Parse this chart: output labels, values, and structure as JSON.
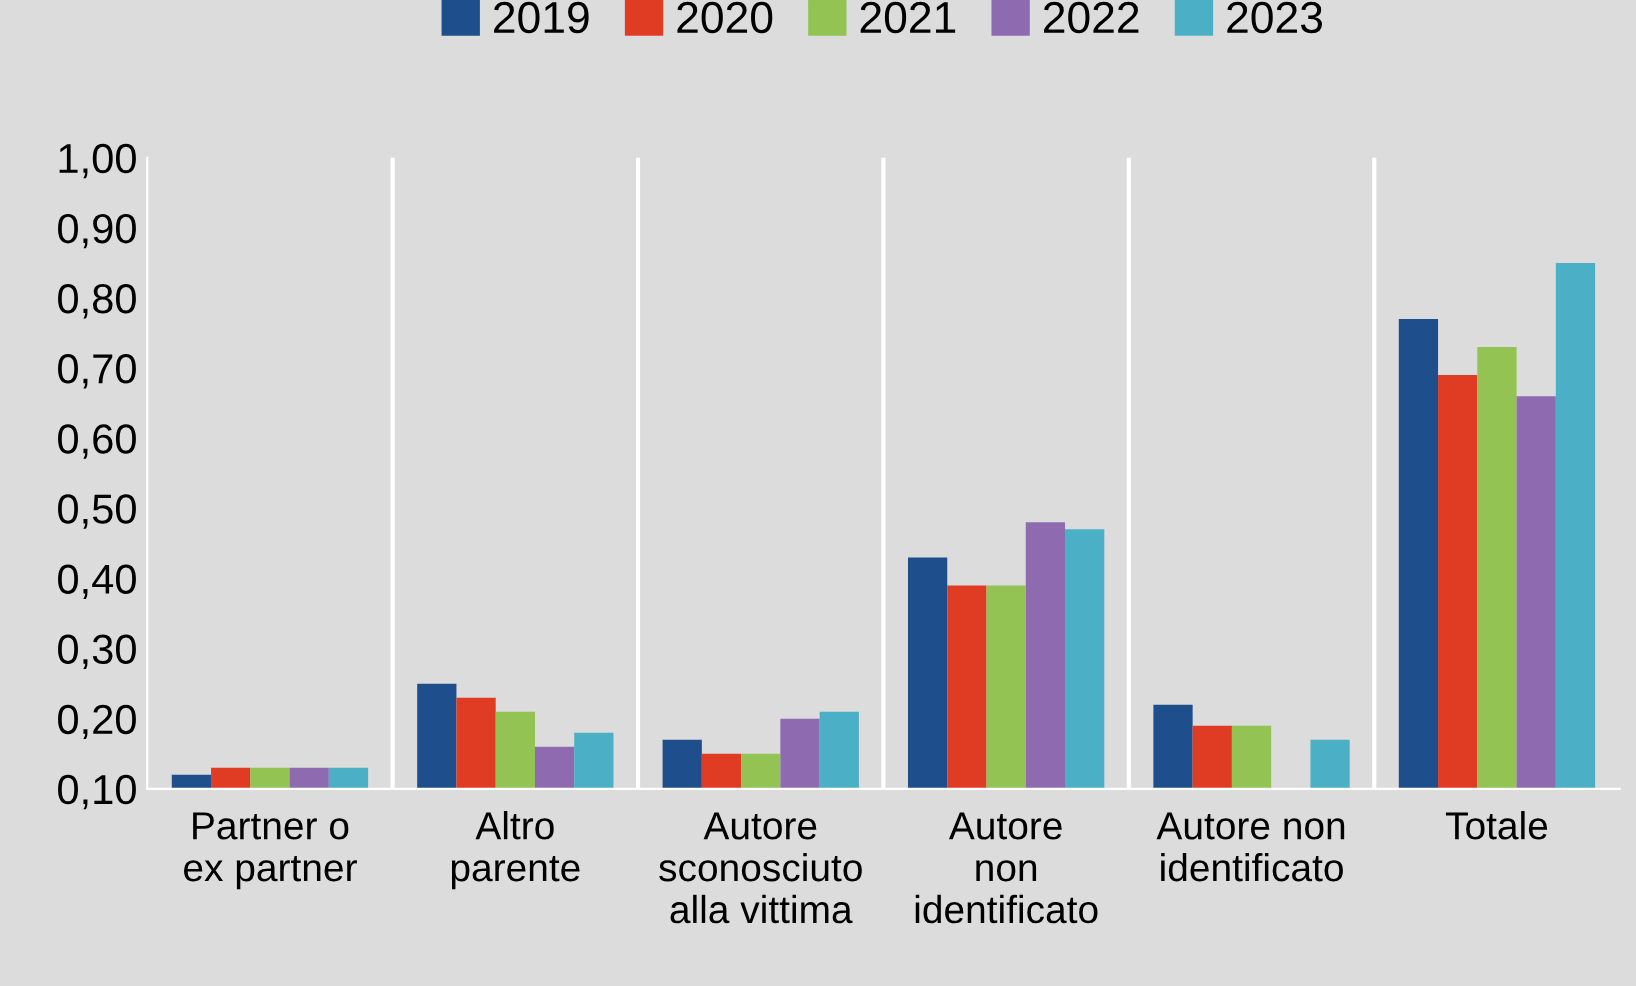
{
  "chart_data": {
    "type": "bar",
    "categories": [
      "Partner o\nex partner",
      "Altro\nparente",
      "Autore\nsconosciuto\nalla vittima",
      "Autore\nnon\nidentificato",
      "Autore non\nidentificato",
      "Totale"
    ],
    "series": [
      {
        "name": "2019",
        "color": "#1f4e8c",
        "values": [
          0.12,
          0.25,
          0.17,
          0.43,
          0.22,
          0.77
        ]
      },
      {
        "name": "2020",
        "color": "#e03c24",
        "values": [
          0.13,
          0.23,
          0.15,
          0.39,
          0.19,
          0.69
        ]
      },
      {
        "name": "2021",
        "color": "#92c353",
        "values": [
          0.13,
          0.21,
          0.15,
          0.39,
          0.19,
          0.73
        ]
      },
      {
        "name": "2022",
        "color": "#8e6bb0",
        "values": [
          0.13,
          0.16,
          0.2,
          0.48,
          null,
          0.66
        ]
      },
      {
        "name": "2023",
        "color": "#4bafc6",
        "values": [
          0.13,
          0.18,
          0.21,
          0.47,
          0.17,
          0.85
        ]
      }
    ],
    "ylim": [
      0.1,
      1.0
    ],
    "yticks": [
      {
        "value": 0.1,
        "label": "0,10"
      },
      {
        "value": 0.2,
        "label": "0,20"
      },
      {
        "value": 0.3,
        "label": "0,30"
      },
      {
        "value": 0.4,
        "label": "0,40"
      },
      {
        "value": 0.5,
        "label": "0,50"
      },
      {
        "value": 0.6,
        "label": "0,60"
      },
      {
        "value": 0.7,
        "label": "0,70"
      },
      {
        "value": 0.8,
        "label": "0,80"
      },
      {
        "value": 0.9,
        "label": "0,90"
      },
      {
        "value": 1.0,
        "label": "1,00"
      }
    ],
    "grid": "x",
    "legend": "top"
  }
}
